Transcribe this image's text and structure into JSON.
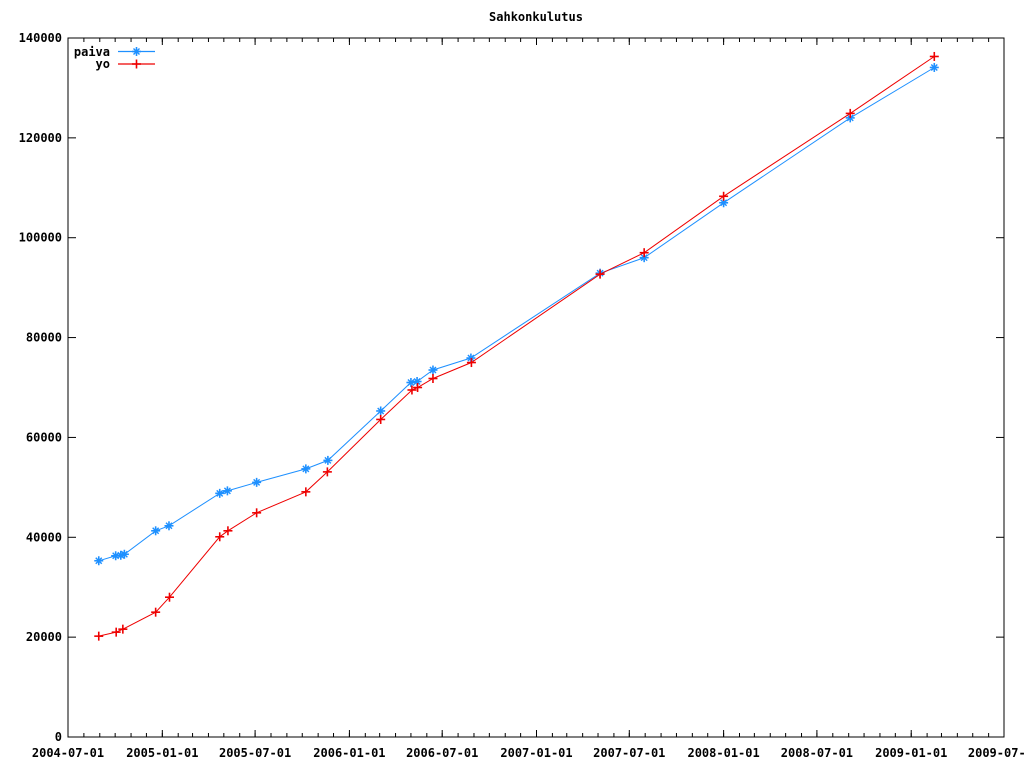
{
  "chart_data": {
    "type": "line",
    "title": "Sahkonkulutus",
    "background_color": "#ffffff",
    "grid": false,
    "x_axis": {
      "type": "time",
      "range": [
        "2004-07-01",
        "2009-07-01"
      ],
      "tick_labels": [
        "2004-07-01",
        "2005-01-01",
        "2005-07-01",
        "2006-01-01",
        "2006-07-01",
        "2007-01-01",
        "2007-07-01",
        "2008-01-01",
        "2008-07-01",
        "2009-01-01",
        "2009-07-01"
      ],
      "minor_ticks": "monthly"
    },
    "y_axis": {
      "range": [
        0,
        140000
      ],
      "tick_step": 20000,
      "tick_labels": [
        "0",
        "20000",
        "40000",
        "60000",
        "80000",
        "100000",
        "120000",
        "140000"
      ]
    },
    "legend": {
      "position": "top-left",
      "entries": [
        "paiva",
        "yo"
      ]
    },
    "series": [
      {
        "name": "paiva",
        "color": "#1e90ff",
        "marker": "asterisk",
        "points": [
          [
            "2004-08-30",
            35300
          ],
          [
            "2004-10-02",
            36300
          ],
          [
            "2004-10-12",
            36400
          ],
          [
            "2004-10-19",
            36600
          ],
          [
            "2004-12-19",
            41300
          ],
          [
            "2005-01-14",
            42300
          ],
          [
            "2005-04-23",
            48800
          ],
          [
            "2005-05-08",
            49300
          ],
          [
            "2005-07-04",
            51000
          ],
          [
            "2005-10-08",
            53700
          ],
          [
            "2005-11-20",
            55400
          ],
          [
            "2006-03-03",
            65300
          ],
          [
            "2006-05-01",
            71000
          ],
          [
            "2006-05-13",
            71200
          ],
          [
            "2006-06-13",
            73500
          ],
          [
            "2006-08-26",
            75900
          ],
          [
            "2007-05-05",
            92900
          ],
          [
            "2007-07-30",
            96000
          ],
          [
            "2008-01-01",
            107000
          ],
          [
            "2008-09-04",
            124000
          ],
          [
            "2009-02-15",
            134100
          ]
        ]
      },
      {
        "name": "yo",
        "color": "#ee0000",
        "marker": "plus",
        "points": [
          [
            "2004-08-30",
            20200
          ],
          [
            "2004-10-03",
            21000
          ],
          [
            "2004-10-16",
            21600
          ],
          [
            "2004-12-19",
            25000
          ],
          [
            "2005-01-15",
            28000
          ],
          [
            "2005-04-23",
            40100
          ],
          [
            "2005-05-09",
            41300
          ],
          [
            "2005-07-04",
            44900
          ],
          [
            "2005-10-08",
            49100
          ],
          [
            "2005-11-19",
            53100
          ],
          [
            "2006-03-03",
            63600
          ],
          [
            "2006-05-03",
            69500
          ],
          [
            "2006-05-14",
            70000
          ],
          [
            "2006-06-13",
            71800
          ],
          [
            "2006-08-27",
            75000
          ],
          [
            "2007-05-05",
            92700
          ],
          [
            "2007-07-30",
            97000
          ],
          [
            "2008-01-01",
            108300
          ],
          [
            "2008-09-04",
            124900
          ],
          [
            "2009-02-15",
            136300
          ]
        ]
      }
    ]
  }
}
